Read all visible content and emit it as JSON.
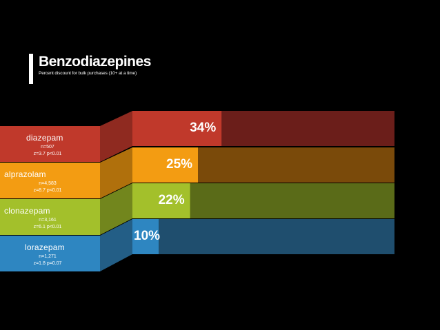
{
  "header": {
    "title": "Benzodiazepines",
    "subtitle": "Percent discount for bulk purchases (10+ at a time)"
  },
  "rows": [
    {
      "name": "diazepam",
      "n": "n=507",
      "zp": "z=3.7   p<0.01",
      "pct_label": "34%",
      "color": "#c0392b",
      "track": "#6b1e1a",
      "side": "#8f2a20"
    },
    {
      "name": "alprazolam",
      "n": "n=4,583",
      "zp": "z=8.7   p<0.01",
      "pct_label": "25%",
      "color": "#f39c12",
      "track": "#7a4a0a",
      "side": "#b0700c"
    },
    {
      "name": "clonazepam",
      "n": "n=3,161",
      "zp": "z=6.1   p<0.01",
      "pct_label": "22%",
      "color": "#a3c02b",
      "track": "#5a6b18",
      "side": "#72861d"
    },
    {
      "name": "lorazepam",
      "n": "n=1,271",
      "zp": "z=1.8   p=0.07",
      "pct_label": "10%",
      "color": "#2e86c1",
      "track": "#1f4e6e",
      "side": "#235e86"
    }
  ],
  "chart_data": {
    "type": "bar",
    "title": "Benzodiazepines",
    "subtitle": "Percent discount for bulk purchases (10+ at a time)",
    "categories": [
      "diazepam",
      "alprazolam",
      "clonazepam",
      "lorazepam"
    ],
    "values": [
      34,
      25,
      22,
      10
    ],
    "unit": "%",
    "ylim": [
      0,
      100
    ],
    "grid": false,
    "orientation": "horizontal"
  }
}
